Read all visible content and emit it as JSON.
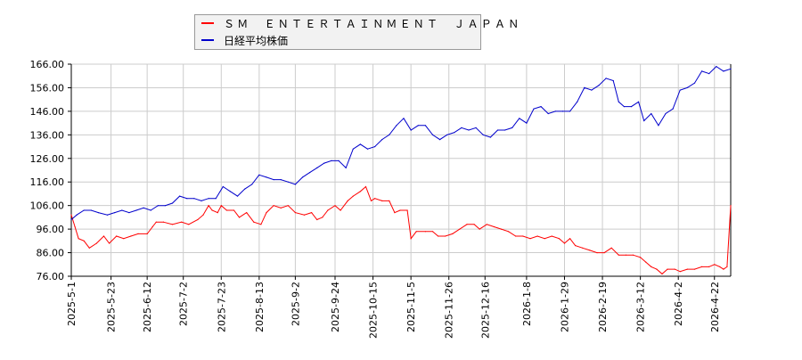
{
  "chart_data": {
    "type": "line",
    "title": "",
    "xlabel": "",
    "ylabel": "",
    "ylim": [
      76,
      166
    ],
    "xlim": [
      "2025-05-01",
      "2026-05-01"
    ],
    "yticks": [
      "166.00",
      "156.00",
      "146.00",
      "136.00",
      "126.00",
      "116.00",
      "106.00",
      "96.00",
      "86.00",
      "76.00"
    ],
    "xticks": [
      "2025-5-1",
      "2025-5-23",
      "2025-6-12",
      "2025-7-2",
      "2025-7-23",
      "2025-8-13",
      "2025-9-2",
      "2025-9-24",
      "2025-10-15",
      "2025-11-5",
      "2025-11-26",
      "2025-12-16",
      "2026-1-8",
      "2026-1-29",
      "2026-2-19",
      "2026-3-12",
      "2026-4-2",
      "2026-4-22"
    ],
    "grid": true,
    "legend_position": "top-left",
    "series": [
      {
        "name": "ＳＭ　ＥＮＴＥＲＴＡＩＮＭＥＮＴ　ＪＡＰＡＮ",
        "color": "#ff0000",
        "points": [
          [
            "2025-05-01",
            102
          ],
          [
            "2025-05-03",
            97
          ],
          [
            "2025-05-05",
            92
          ],
          [
            "2025-05-08",
            91
          ],
          [
            "2025-05-11",
            88
          ],
          [
            "2025-05-15",
            90
          ],
          [
            "2025-05-19",
            93
          ],
          [
            "2025-05-22",
            90
          ],
          [
            "2025-05-26",
            93
          ],
          [
            "2025-05-30",
            92
          ],
          [
            "2025-06-03",
            93
          ],
          [
            "2025-06-07",
            94
          ],
          [
            "2025-06-12",
            94
          ],
          [
            "2025-06-15",
            97
          ],
          [
            "2025-06-17",
            99
          ],
          [
            "2025-06-21",
            99
          ],
          [
            "2025-06-26",
            98
          ],
          [
            "2025-07-01",
            99
          ],
          [
            "2025-07-05",
            98
          ],
          [
            "2025-07-10",
            100
          ],
          [
            "2025-07-13",
            102
          ],
          [
            "2025-07-16",
            106
          ],
          [
            "2025-07-18",
            104
          ],
          [
            "2025-07-21",
            103
          ],
          [
            "2025-07-23",
            106
          ],
          [
            "2025-07-26",
            104
          ],
          [
            "2025-07-30",
            104
          ],
          [
            "2025-08-02",
            101
          ],
          [
            "2025-08-06",
            103
          ],
          [
            "2025-08-10",
            99
          ],
          [
            "2025-08-14",
            98
          ],
          [
            "2025-08-17",
            103
          ],
          [
            "2025-08-21",
            106
          ],
          [
            "2025-08-25",
            105
          ],
          [
            "2025-08-29",
            106
          ],
          [
            "2025-09-02",
            103
          ],
          [
            "2025-09-07",
            102
          ],
          [
            "2025-09-11",
            103
          ],
          [
            "2025-09-14",
            100
          ],
          [
            "2025-09-17",
            101
          ],
          [
            "2025-09-20",
            104
          ],
          [
            "2025-09-24",
            106
          ],
          [
            "2025-09-27",
            104
          ],
          [
            "2025-10-01",
            108
          ],
          [
            "2025-10-04",
            110
          ],
          [
            "2025-10-08",
            112
          ],
          [
            "2025-10-11",
            114
          ],
          [
            "2025-10-14",
            108
          ],
          [
            "2025-10-16",
            109
          ],
          [
            "2025-10-20",
            108
          ],
          [
            "2025-10-24",
            108
          ],
          [
            "2025-10-27",
            103
          ],
          [
            "2025-10-30",
            104
          ],
          [
            "2025-11-03",
            104
          ],
          [
            "2025-11-05",
            92
          ],
          [
            "2025-11-08",
            95
          ],
          [
            "2025-11-13",
            95
          ],
          [
            "2025-11-17",
            95
          ],
          [
            "2025-11-20",
            93
          ],
          [
            "2025-11-24",
            93
          ],
          [
            "2025-11-28",
            94
          ],
          [
            "2025-12-02",
            96
          ],
          [
            "2025-12-06",
            98
          ],
          [
            "2025-12-10",
            98
          ],
          [
            "2025-12-13",
            96
          ],
          [
            "2025-12-17",
            98
          ],
          [
            "2025-12-21",
            97
          ],
          [
            "2025-12-25",
            96
          ],
          [
            "2025-12-29",
            95
          ],
          [
            "2026-01-02",
            93
          ],
          [
            "2026-01-06",
            93
          ],
          [
            "2026-01-10",
            92
          ],
          [
            "2026-01-14",
            93
          ],
          [
            "2026-01-18",
            92
          ],
          [
            "2026-01-22",
            93
          ],
          [
            "2026-01-26",
            92
          ],
          [
            "2026-01-29",
            90
          ],
          [
            "2026-02-01",
            92
          ],
          [
            "2026-02-04",
            89
          ],
          [
            "2026-02-08",
            88
          ],
          [
            "2026-02-12",
            87
          ],
          [
            "2026-02-16",
            86
          ],
          [
            "2026-02-20",
            86
          ],
          [
            "2026-02-24",
            88
          ],
          [
            "2026-02-28",
            85
          ],
          [
            "2026-03-04",
            85
          ],
          [
            "2026-03-08",
            85
          ],
          [
            "2026-03-12",
            84
          ],
          [
            "2026-03-15",
            82
          ],
          [
            "2026-03-18",
            80
          ],
          [
            "2026-03-21",
            79
          ],
          [
            "2026-03-24",
            77
          ],
          [
            "2026-03-27",
            79
          ],
          [
            "2026-03-31",
            79
          ],
          [
            "2026-04-03",
            78
          ],
          [
            "2026-04-07",
            79
          ],
          [
            "2026-04-11",
            79
          ],
          [
            "2026-04-15",
            80
          ],
          [
            "2026-04-19",
            80
          ],
          [
            "2026-04-22",
            81
          ],
          [
            "2026-04-25",
            80
          ],
          [
            "2026-04-27",
            79
          ],
          [
            "2026-04-29",
            80
          ],
          [
            "2026-05-01",
            106
          ]
        ]
      },
      {
        "name": "日経平均株価",
        "color": "#0000cc",
        "points": [
          [
            "2025-05-01",
            100
          ],
          [
            "2025-05-04",
            102
          ],
          [
            "2025-05-08",
            104
          ],
          [
            "2025-05-12",
            104
          ],
          [
            "2025-05-16",
            103
          ],
          [
            "2025-05-21",
            102
          ],
          [
            "2025-05-25",
            103
          ],
          [
            "2025-05-29",
            104
          ],
          [
            "2025-06-02",
            103
          ],
          [
            "2025-06-06",
            104
          ],
          [
            "2025-06-10",
            105
          ],
          [
            "2025-06-14",
            104
          ],
          [
            "2025-06-18",
            106
          ],
          [
            "2025-06-22",
            106
          ],
          [
            "2025-06-26",
            107
          ],
          [
            "2025-06-30",
            110
          ],
          [
            "2025-07-04",
            109
          ],
          [
            "2025-07-08",
            109
          ],
          [
            "2025-07-12",
            108
          ],
          [
            "2025-07-16",
            109
          ],
          [
            "2025-07-20",
            109
          ],
          [
            "2025-07-24",
            114
          ],
          [
            "2025-07-28",
            112
          ],
          [
            "2025-08-01",
            110
          ],
          [
            "2025-08-05",
            113
          ],
          [
            "2025-08-09",
            115
          ],
          [
            "2025-08-13",
            119
          ],
          [
            "2025-08-17",
            118
          ],
          [
            "2025-08-21",
            117
          ],
          [
            "2025-08-25",
            117
          ],
          [
            "2025-08-29",
            116
          ],
          [
            "2025-09-02",
            115
          ],
          [
            "2025-09-06",
            118
          ],
          [
            "2025-09-10",
            120
          ],
          [
            "2025-09-14",
            122
          ],
          [
            "2025-09-18",
            124
          ],
          [
            "2025-09-22",
            125
          ],
          [
            "2025-09-26",
            125
          ],
          [
            "2025-09-30",
            122
          ],
          [
            "2025-10-04",
            130
          ],
          [
            "2025-10-08",
            132
          ],
          [
            "2025-10-12",
            130
          ],
          [
            "2025-10-16",
            131
          ],
          [
            "2025-10-20",
            134
          ],
          [
            "2025-10-24",
            136
          ],
          [
            "2025-10-28",
            140
          ],
          [
            "2025-11-01",
            143
          ],
          [
            "2025-11-05",
            138
          ],
          [
            "2025-11-09",
            140
          ],
          [
            "2025-11-13",
            140
          ],
          [
            "2025-11-17",
            136
          ],
          [
            "2025-11-21",
            134
          ],
          [
            "2025-11-25",
            136
          ],
          [
            "2025-11-29",
            137
          ],
          [
            "2025-12-03",
            139
          ],
          [
            "2025-12-07",
            138
          ],
          [
            "2025-12-11",
            139
          ],
          [
            "2025-12-15",
            136
          ],
          [
            "2025-12-19",
            135
          ],
          [
            "2025-12-23",
            138
          ],
          [
            "2025-12-27",
            138
          ],
          [
            "2025-12-31",
            139
          ],
          [
            "2026-01-04",
            143
          ],
          [
            "2026-01-08",
            141
          ],
          [
            "2026-01-12",
            147
          ],
          [
            "2026-01-16",
            148
          ],
          [
            "2026-01-20",
            145
          ],
          [
            "2026-01-24",
            146
          ],
          [
            "2026-01-28",
            146
          ],
          [
            "2026-02-01",
            146
          ],
          [
            "2026-02-05",
            150
          ],
          [
            "2026-02-09",
            156
          ],
          [
            "2026-02-13",
            155
          ],
          [
            "2026-02-17",
            157
          ],
          [
            "2026-02-21",
            160
          ],
          [
            "2026-02-25",
            159
          ],
          [
            "2026-02-28",
            150
          ],
          [
            "2026-03-03",
            148
          ],
          [
            "2026-03-07",
            148
          ],
          [
            "2026-03-11",
            150
          ],
          [
            "2026-03-14",
            142
          ],
          [
            "2026-03-18",
            145
          ],
          [
            "2026-03-22",
            140
          ],
          [
            "2026-03-26",
            145
          ],
          [
            "2026-03-30",
            147
          ],
          [
            "2026-04-03",
            155
          ],
          [
            "2026-04-07",
            156
          ],
          [
            "2026-04-11",
            158
          ],
          [
            "2026-04-15",
            163
          ],
          [
            "2026-04-19",
            162
          ],
          [
            "2026-04-23",
            165
          ],
          [
            "2026-04-27",
            163
          ],
          [
            "2026-05-01",
            164
          ]
        ]
      }
    ]
  }
}
